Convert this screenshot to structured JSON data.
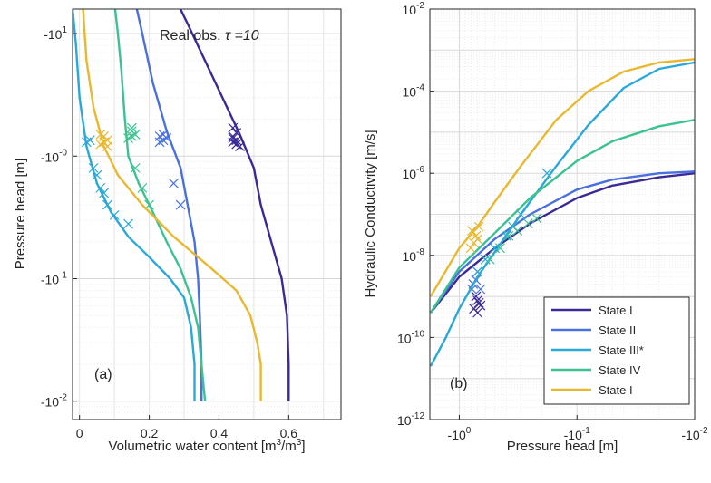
{
  "chart_data": [
    {
      "panel": "(a)",
      "type": "line",
      "annotation": "Real obs.",
      "annotation_param": "τ =10",
      "xlabel": "Volumetric water content [m³/m³]",
      "xlabel_parts": {
        "main": "Volumetric water content  [m",
        "exp1": "3",
        "mid": "/m",
        "exp2": "3",
        "end": "]"
      },
      "ylabel": "Pressure head [m]",
      "xlim": [
        -0.02,
        0.75
      ],
      "ylim_abs_log10": [
        -2.15,
        1.2
      ],
      "xticks": [
        0,
        0.2,
        0.4,
        0.6
      ],
      "xtick_labels": [
        "0",
        "0.2",
        "0.4",
        "0.6"
      ],
      "yticks_abs": [
        10,
        1,
        0.1,
        0.01
      ],
      "ytick_labels": [
        {
          "base": "-10",
          "exp": "1"
        },
        {
          "base": "-10",
          "exp": "-0"
        },
        {
          "base": "-10",
          "exp": "-1"
        },
        {
          "base": "-10",
          "exp": "-2"
        }
      ],
      "grid": true,
      "series": [
        {
          "color": "#3a2a96",
          "curve": [
            [
              0.6,
              0.01
            ],
            [
              0.6,
              0.02
            ],
            [
              0.595,
              0.05
            ],
            [
              0.58,
              0.1
            ],
            [
              0.55,
              0.2
            ],
            [
              0.52,
              0.4
            ],
            [
              0.5,
              0.8
            ],
            [
              0.46,
              1.5
            ],
            [
              0.41,
              3
            ],
            [
              0.36,
              6
            ],
            [
              0.31,
              12
            ],
            [
              0.28,
              18
            ]
          ],
          "obs": [
            [
              0.44,
              1.3
            ],
            [
              0.45,
              1.35
            ],
            [
              0.44,
              1.45
            ],
            [
              0.45,
              1.55
            ],
            [
              0.44,
              1.7
            ],
            [
              0.46,
              1.2
            ],
            [
              0.45,
              1.25
            ],
            [
              0.44,
              1.4
            ]
          ]
        },
        {
          "color": "#4a70e0",
          "curve": [
            [
              0.35,
              0.01
            ],
            [
              0.35,
              0.02
            ],
            [
              0.345,
              0.05
            ],
            [
              0.34,
              0.1
            ],
            [
              0.33,
              0.2
            ],
            [
              0.31,
              0.4
            ],
            [
              0.29,
              0.8
            ],
            [
              0.25,
              1.6
            ],
            [
              0.21,
              4
            ],
            [
              0.18,
              10
            ],
            [
              0.16,
              18
            ]
          ],
          "obs": [
            [
              0.23,
              1.3
            ],
            [
              0.24,
              1.35
            ],
            [
              0.25,
              1.4
            ],
            [
              0.24,
              1.5
            ],
            [
              0.23,
              1.45
            ],
            [
              0.27,
              0.6
            ],
            [
              0.29,
              0.4
            ]
          ]
        },
        {
          "color": "#2aa8d8",
          "curve": [
            [
              0.33,
              0.01
            ],
            [
              0.33,
              0.02
            ],
            [
              0.32,
              0.04
            ],
            [
              0.3,
              0.07
            ],
            [
              0.26,
              0.1
            ],
            [
              0.2,
              0.15
            ],
            [
              0.14,
              0.22
            ],
            [
              0.09,
              0.35
            ],
            [
              0.05,
              0.6
            ],
            [
              0.02,
              1.2
            ],
            [
              0.0,
              3
            ],
            [
              -0.01,
              8
            ],
            [
              -0.02,
              16
            ]
          ],
          "obs": [
            [
              0.02,
              1.3
            ],
            [
              0.03,
              1.35
            ],
            [
              0.04,
              0.8
            ],
            [
              0.05,
              0.7
            ],
            [
              0.06,
              0.55
            ],
            [
              0.07,
              0.5
            ],
            [
              0.08,
              0.4
            ],
            [
              0.1,
              0.33
            ],
            [
              0.14,
              0.28
            ]
          ]
        },
        {
          "color": "#3cc290",
          "curve": [
            [
              0.36,
              0.01
            ],
            [
              0.35,
              0.02
            ],
            [
              0.34,
              0.04
            ],
            [
              0.32,
              0.07
            ],
            [
              0.29,
              0.12
            ],
            [
              0.25,
              0.2
            ],
            [
              0.21,
              0.35
            ],
            [
              0.17,
              0.6
            ],
            [
              0.14,
              1.0
            ],
            [
              0.13,
              2
            ],
            [
              0.12,
              5
            ],
            [
              0.11,
              10
            ],
            [
              0.1,
              18
            ]
          ],
          "obs": [
            [
              0.14,
              1.4
            ],
            [
              0.15,
              1.45
            ],
            [
              0.16,
              1.5
            ],
            [
              0.15,
              1.6
            ],
            [
              0.15,
              1.7
            ],
            [
              0.16,
              0.8
            ],
            [
              0.18,
              0.55
            ],
            [
              0.2,
              0.4
            ]
          ]
        },
        {
          "color": "#e8b830",
          "curve": [
            [
              0.52,
              0.01
            ],
            [
              0.52,
              0.02
            ],
            [
              0.51,
              0.03
            ],
            [
              0.49,
              0.05
            ],
            [
              0.45,
              0.08
            ],
            [
              0.38,
              0.12
            ],
            [
              0.27,
              0.22
            ],
            [
              0.18,
              0.4
            ],
            [
              0.11,
              0.7
            ],
            [
              0.07,
              1.2
            ],
            [
              0.04,
              2.5
            ],
            [
              0.02,
              6
            ],
            [
              0.01,
              16
            ]
          ],
          "obs": [
            [
              0.06,
              1.25
            ],
            [
              0.07,
              1.3
            ],
            [
              0.08,
              1.35
            ],
            [
              0.07,
              1.45
            ],
            [
              0.06,
              1.5
            ],
            [
              0.08,
              1.2
            ]
          ]
        }
      ]
    },
    {
      "panel": "(b)",
      "type": "line",
      "xlabel": "Pressure head [m]",
      "ylabel": "Hydraulic Conductivity  [m/s]",
      "xlim_abs_log10": [
        0.25,
        -2.0
      ],
      "ylim_log10": [
        -12,
        -2
      ],
      "xticks_abs": [
        1,
        0.1,
        0.01
      ],
      "xtick_labels": [
        {
          "base": "-10",
          "exp": "0"
        },
        {
          "base": "-10",
          "exp": "-1"
        },
        {
          "base": "-10",
          "exp": "-2"
        }
      ],
      "yticks": [
        1e-12,
        1e-10,
        1e-08,
        1e-06,
        0.0001,
        0.01
      ],
      "ytick_labels": [
        {
          "base": "10",
          "exp": "-12"
        },
        {
          "base": "10",
          "exp": "-10"
        },
        {
          "base": "10",
          "exp": "-8"
        },
        {
          "base": "10",
          "exp": "-6"
        },
        {
          "base": "10",
          "exp": "-4"
        },
        {
          "base": "10",
          "exp": "-2"
        }
      ],
      "grid": true,
      "legend_position": "bottom-right",
      "series": [
        {
          "name": "State I",
          "color": "#3a2a96",
          "curve": [
            [
              1.75,
              4e-10
            ],
            [
              1,
              3e-09
            ],
            [
              0.5,
              1.5e-08
            ],
            [
              0.25,
              6e-08
            ],
            [
              0.1,
              2.5e-07
            ],
            [
              0.05,
              5e-07
            ],
            [
              0.02,
              8e-07
            ],
            [
              0.01,
              1e-06
            ]
          ],
          "obs": [
            [
              0.75,
              5e-10
            ],
            [
              0.7,
              4e-10
            ],
            [
              0.68,
              7e-10
            ],
            [
              0.72,
              1e-09
            ],
            [
              0.66,
              6e-10
            ],
            [
              0.7,
              8e-10
            ]
          ]
        },
        {
          "name": "State II",
          "color": "#4a70e0",
          "curve": [
            [
              1.75,
              4e-10
            ],
            [
              1,
              4e-09
            ],
            [
              0.5,
              2.5e-08
            ],
            [
              0.25,
              1e-07
            ],
            [
              0.1,
              4e-07
            ],
            [
              0.05,
              7e-07
            ],
            [
              0.02,
              1e-06
            ],
            [
              0.01,
              1.1e-06
            ]
          ],
          "obs": [
            [
              0.78,
              1.5e-09
            ],
            [
              0.72,
              2.5e-09
            ],
            [
              0.7,
              4e-09
            ],
            [
              0.76,
              2e-09
            ],
            [
              0.66,
              1.5e-09
            ]
          ]
        },
        {
          "name": "State III*",
          "color": "#2aa8d8",
          "curve": [
            [
              1.75,
              2e-11
            ],
            [
              1.3,
              1e-10
            ],
            [
              1,
              5e-10
            ],
            [
              0.7,
              3e-09
            ],
            [
              0.5,
              1.2e-08
            ],
            [
              0.3,
              1e-07
            ],
            [
              0.15,
              1.5e-06
            ],
            [
              0.08,
              1.5e-05
            ],
            [
              0.04,
              0.00012
            ],
            [
              0.02,
              0.00035
            ],
            [
              0.01,
              0.0005
            ]
          ],
          "obs": [
            [
              0.7,
              4e-09
            ],
            [
              0.6,
              8e-09
            ],
            [
              0.5,
              1.5e-08
            ],
            [
              0.4,
              3e-08
            ],
            [
              0.35,
              5e-08
            ],
            [
              0.3,
              1e-07
            ],
            [
              0.18,
              1e-06
            ]
          ]
        },
        {
          "name": "State IV",
          "color": "#3cc290",
          "curve": [
            [
              1.75,
              4e-10
            ],
            [
              1,
              5e-09
            ],
            [
              0.5,
              3.5e-08
            ],
            [
              0.25,
              2.5e-07
            ],
            [
              0.1,
              2e-06
            ],
            [
              0.05,
              6e-06
            ],
            [
              0.02,
              1.4e-05
            ],
            [
              0.01,
              2e-05
            ]
          ],
          "obs": [
            [
              0.55,
              8e-09
            ],
            [
              0.45,
              1.5e-08
            ],
            [
              0.38,
              3e-08
            ],
            [
              0.32,
              4e-08
            ],
            [
              0.26,
              6e-08
            ],
            [
              0.22,
              8e-08
            ]
          ]
        },
        {
          "name": "State I",
          "color": "#e8b830",
          "curve": [
            [
              1.75,
              1e-09
            ],
            [
              1,
              1.5e-08
            ],
            [
              0.7,
              5e-08
            ],
            [
              0.5,
              2e-07
            ],
            [
              0.3,
              1.5e-06
            ],
            [
              0.15,
              2e-05
            ],
            [
              0.08,
              0.0001
            ],
            [
              0.04,
              0.0003
            ],
            [
              0.02,
              0.0005
            ],
            [
              0.01,
              0.0006
            ]
          ],
          "obs": [
            [
              0.8,
              1.5e-08
            ],
            [
              0.75,
              2e-08
            ],
            [
              0.72,
              3e-08
            ],
            [
              0.7,
              2.5e-08
            ],
            [
              0.78,
              4e-08
            ],
            [
              0.68,
              5e-08
            ]
          ]
        }
      ]
    }
  ]
}
